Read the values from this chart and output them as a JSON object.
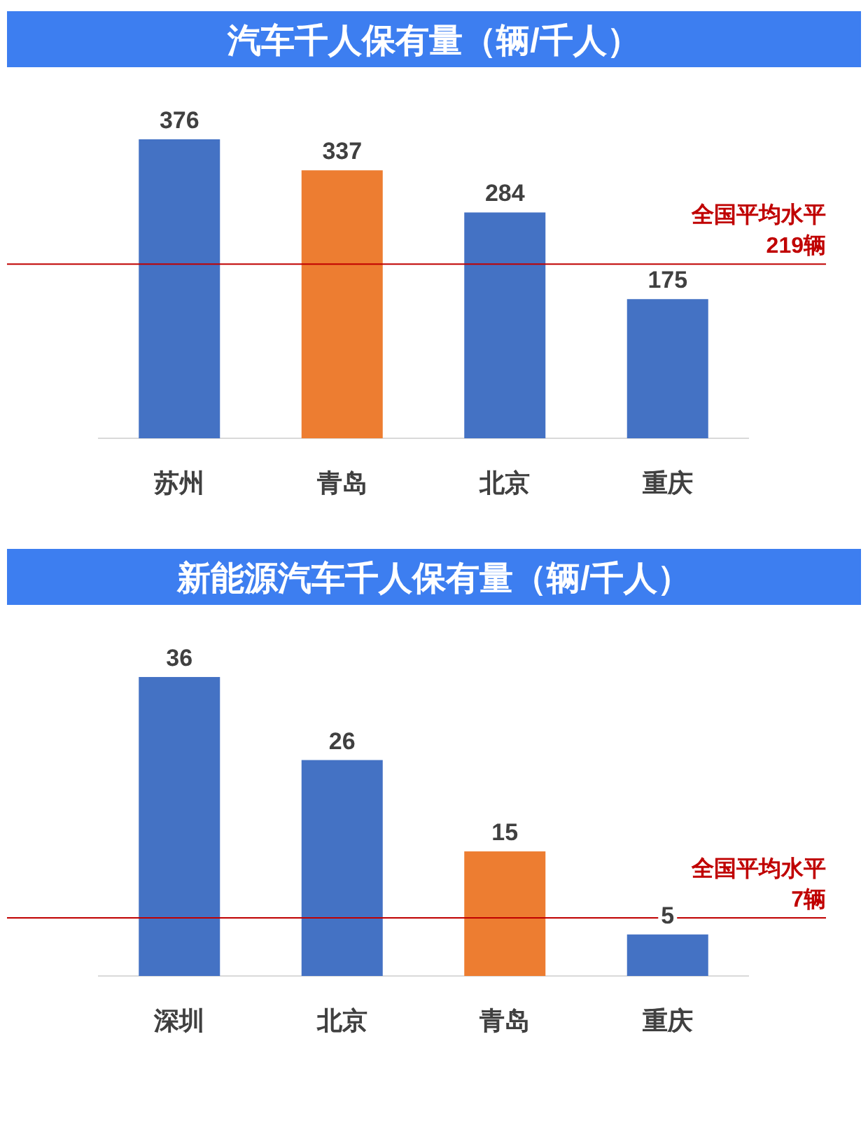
{
  "chart_data": [
    {
      "type": "bar",
      "title": "汽车千人保有量（辆/千人）",
      "categories": [
        "苏州",
        "青岛",
        "北京",
        "重庆"
      ],
      "values": [
        376,
        337,
        284,
        175
      ],
      "colors": [
        "#4472c4",
        "#ed7d31",
        "#4472c4",
        "#4472c4"
      ],
      "data_labels": true,
      "ref_lines": [
        {
          "axis": "y",
          "value": 219,
          "label": "全国平均水平\n219辆",
          "color": "#c00000"
        }
      ]
    },
    {
      "type": "bar",
      "title": "新能源汽车千人保有量（辆/千人）",
      "categories": [
        "深圳",
        "北京",
        "青岛",
        "重庆"
      ],
      "values": [
        36,
        26,
        15,
        5
      ],
      "colors": [
        "#4472c4",
        "#4472c4",
        "#ed7d31",
        "#4472c4"
      ],
      "data_labels": true,
      "ref_lines": [
        {
          "axis": "y",
          "value": 7,
          "label": "全国平均水平\n7辆",
          "color": "#c00000"
        }
      ]
    }
  ]
}
